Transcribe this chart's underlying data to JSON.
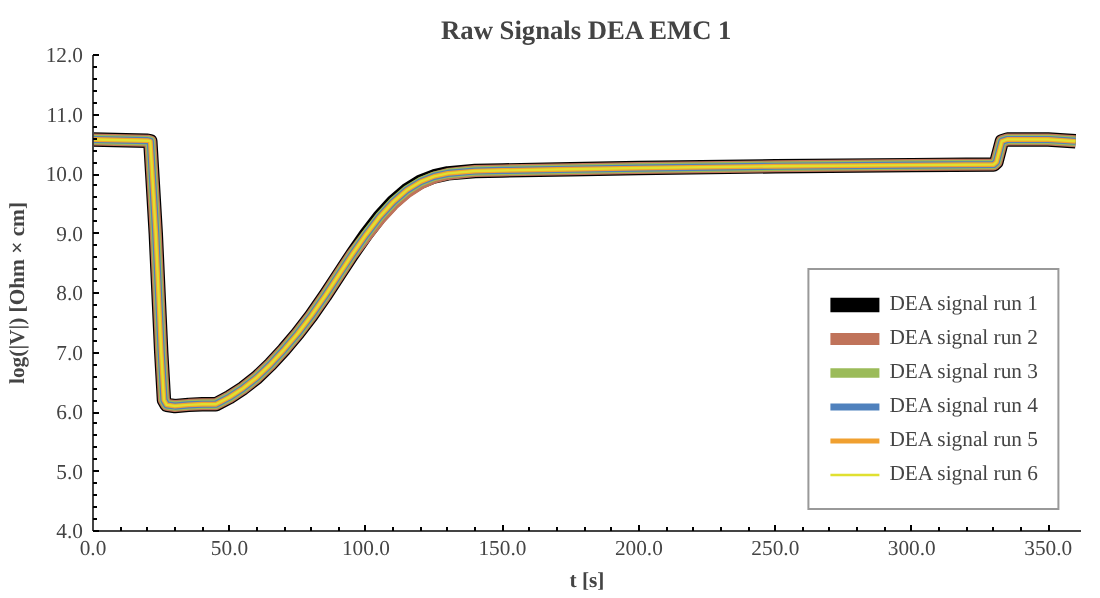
{
  "chart_data": {
    "type": "line",
    "title": "Raw Signals DEA EMC 1",
    "xlabel": "t [s]",
    "ylabel": "log(|V|) [Ohm × cm]",
    "x": [
      0,
      20,
      21,
      23,
      25,
      26,
      27,
      30,
      35,
      40,
      45,
      50,
      55,
      60,
      65,
      70,
      75,
      80,
      85,
      90,
      95,
      100,
      105,
      110,
      115,
      120,
      125,
      130,
      140,
      150,
      175,
      200,
      250,
      300,
      330,
      331,
      333,
      335,
      350,
      360
    ],
    "series": [
      {
        "name": "DEA signal run 1",
        "color": "#000000",
        "values": [
          10.58,
          10.56,
          10.55,
          9.0,
          7.0,
          6.2,
          6.12,
          6.1,
          6.12,
          6.13,
          6.13,
          6.25,
          6.4,
          6.58,
          6.8,
          7.05,
          7.32,
          7.62,
          7.95,
          8.3,
          8.65,
          8.98,
          9.28,
          9.53,
          9.73,
          9.87,
          9.96,
          10.01,
          10.05,
          10.06,
          10.08,
          10.1,
          10.13,
          10.15,
          10.16,
          10.2,
          10.55,
          10.58,
          10.58,
          10.55
        ]
      },
      {
        "name": "DEA signal run 2",
        "color": "#c0735a",
        "values": [
          10.58,
          10.56,
          10.55,
          9.0,
          7.0,
          6.2,
          6.12,
          6.1,
          6.12,
          6.13,
          6.13,
          6.25,
          6.4,
          6.58,
          6.8,
          7.05,
          7.32,
          7.62,
          7.95,
          8.3,
          8.65,
          8.95,
          9.24,
          9.49,
          9.69,
          9.84,
          9.94,
          10.0,
          10.05,
          10.06,
          10.08,
          10.1,
          10.13,
          10.15,
          10.16,
          10.2,
          10.55,
          10.58,
          10.58,
          10.55
        ]
      },
      {
        "name": "DEA signal run 3",
        "color": "#9bbb59",
        "values": [
          10.58,
          10.56,
          10.55,
          9.0,
          7.0,
          6.2,
          6.12,
          6.1,
          6.12,
          6.13,
          6.13,
          6.25,
          6.4,
          6.58,
          6.8,
          7.05,
          7.32,
          7.62,
          7.95,
          8.3,
          8.65,
          8.98,
          9.28,
          9.53,
          9.73,
          9.87,
          9.96,
          10.01,
          10.05,
          10.06,
          10.08,
          10.1,
          10.13,
          10.15,
          10.16,
          10.2,
          10.55,
          10.58,
          10.58,
          10.55
        ]
      },
      {
        "name": "DEA signal run 4",
        "color": "#4f81bd",
        "values": [
          10.58,
          10.56,
          10.55,
          9.0,
          7.0,
          6.2,
          6.12,
          6.1,
          6.12,
          6.13,
          6.13,
          6.25,
          6.4,
          6.58,
          6.8,
          7.05,
          7.32,
          7.62,
          7.95,
          8.3,
          8.65,
          8.98,
          9.28,
          9.53,
          9.73,
          9.87,
          9.96,
          10.01,
          10.05,
          10.06,
          10.08,
          10.1,
          10.13,
          10.15,
          10.16,
          10.2,
          10.55,
          10.58,
          10.58,
          10.55
        ]
      },
      {
        "name": "DEA signal run 5",
        "color": "#f0a030",
        "values": [
          10.58,
          10.56,
          10.55,
          9.0,
          7.0,
          6.2,
          6.12,
          6.1,
          6.12,
          6.13,
          6.13,
          6.25,
          6.4,
          6.58,
          6.8,
          7.05,
          7.32,
          7.62,
          7.95,
          8.3,
          8.65,
          8.98,
          9.28,
          9.53,
          9.73,
          9.87,
          9.96,
          10.01,
          10.05,
          10.06,
          10.08,
          10.1,
          10.13,
          10.15,
          10.16,
          10.2,
          10.55,
          10.58,
          10.58,
          10.55
        ]
      },
      {
        "name": "DEA signal run 6",
        "color": "#e0e030",
        "values": [
          10.58,
          10.56,
          10.55,
          9.0,
          7.0,
          6.2,
          6.12,
          6.1,
          6.12,
          6.13,
          6.13,
          6.25,
          6.4,
          6.58,
          6.8,
          7.05,
          7.32,
          7.62,
          7.95,
          8.3,
          8.65,
          8.98,
          9.28,
          9.53,
          9.73,
          9.87,
          9.96,
          10.01,
          10.05,
          10.06,
          10.08,
          10.1,
          10.13,
          10.15,
          10.16,
          10.2,
          10.55,
          10.58,
          10.58,
          10.55
        ]
      }
    ],
    "xlim": [
      0,
      362
    ],
    "ylim": [
      4,
      12
    ],
    "xticks": [
      {
        "value": 0,
        "label": "0.0"
      },
      {
        "value": 50,
        "label": "50.0"
      },
      {
        "value": 100,
        "label": "100.0"
      },
      {
        "value": 150,
        "label": "150.0"
      },
      {
        "value": 200,
        "label": "200.0"
      },
      {
        "value": 250,
        "label": "250.0"
      },
      {
        "value": 300,
        "label": "300.0"
      },
      {
        "value": 350,
        "label": "350.0"
      }
    ],
    "yticks": [
      {
        "value": 4,
        "label": "4.0"
      },
      {
        "value": 5,
        "label": "5.0"
      },
      {
        "value": 6,
        "label": "6.0"
      },
      {
        "value": 7,
        "label": "7.0"
      },
      {
        "value": 8,
        "label": "8.0"
      },
      {
        "value": 9,
        "label": "9.0"
      },
      {
        "value": 10,
        "label": "10.0"
      },
      {
        "value": 11,
        "label": "11.0"
      },
      {
        "value": 12,
        "label": "12.0"
      }
    ],
    "grid": false,
    "legend": "bottom right",
    "marker": "none",
    "line_style": "solid"
  }
}
